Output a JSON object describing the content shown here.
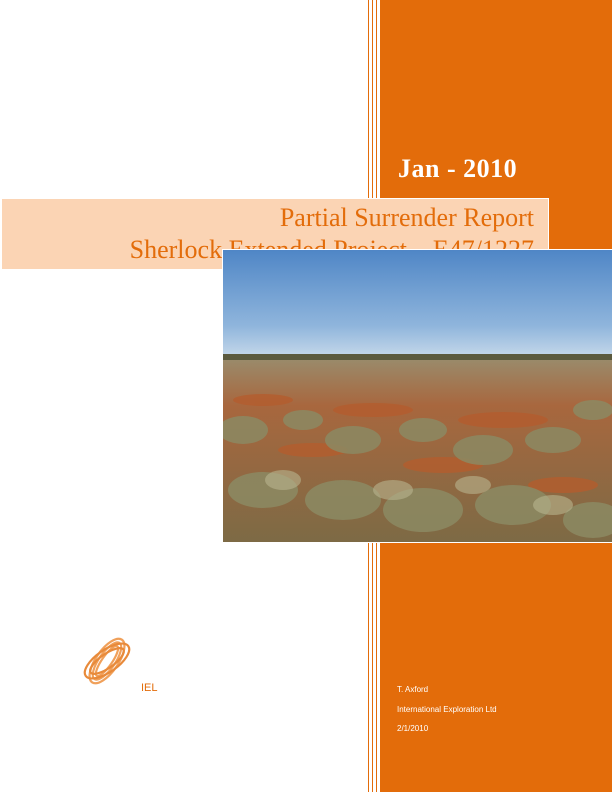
{
  "cover": {
    "date": "Jan - 2010",
    "title_line1": "Partial Surrender Report",
    "title_line2": "Sherlock Extended Project – E47/1227",
    "photo_icon": "landscape-photo",
    "logo_icon": "iel-swirl-logo",
    "logo_text": "IEL",
    "author": "T. Axford",
    "company": "International Exploration Ltd",
    "report_date": "2/1/2010",
    "colors": {
      "accent": "#e36c0a",
      "band": "#fbd4b4",
      "sky": "#6f9fcf",
      "red_soil": "#b05a2c"
    }
  }
}
